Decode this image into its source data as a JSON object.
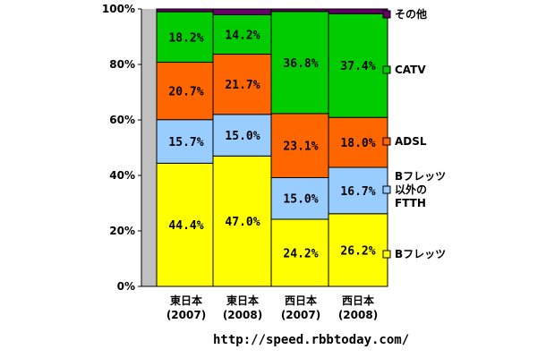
{
  "chart_data": {
    "type": "bar",
    "stacked": true,
    "categories": [
      [
        "東日本",
        "(2007)"
      ],
      [
        "東日本",
        "(2008)"
      ],
      [
        "西日本",
        "(2007)"
      ],
      [
        "西日本",
        "(2008)"
      ]
    ],
    "ylim": [
      0,
      100
    ],
    "yticks": [
      "0%",
      "20%",
      "40%",
      "60%",
      "80%",
      "100%"
    ],
    "grid": false,
    "legend_position": "right",
    "series": [
      {
        "name": "Bフレッツ",
        "legend_lines": [
          "Bフレッツ"
        ],
        "color": "#ffff00",
        "values": [
          44.4,
          47.0,
          24.2,
          26.2
        ],
        "labels": [
          "44.4%",
          "47.0%",
          "24.2%",
          "26.2%"
        ]
      },
      {
        "name": "Bフレッツ以外のFTTH",
        "legend_lines": [
          "Bフレッツ",
          "以外の",
          "FTTH"
        ],
        "color": "#99ccff",
        "values": [
          15.7,
          15.0,
          15.0,
          16.7
        ],
        "labels": [
          "15.7%",
          "15.0%",
          "15.0%",
          "16.7%"
        ]
      },
      {
        "name": "ADSL",
        "legend_lines": [
          "ADSL"
        ],
        "color": "#ff6600",
        "values": [
          20.7,
          21.7,
          23.1,
          18.0
        ],
        "labels": [
          "20.7%",
          "21.7%",
          "23.1%",
          "18.0%"
        ]
      },
      {
        "name": "CATV",
        "legend_lines": [
          "CATV"
        ],
        "color": "#00cc00",
        "values": [
          18.2,
          14.2,
          36.8,
          37.4
        ],
        "labels": [
          "18.2%",
          "14.2%",
          "36.8%",
          "37.4%"
        ]
      },
      {
        "name": "その他",
        "legend_lines": [
          "その他"
        ],
        "color": "#660066",
        "values": [
          1.0,
          2.1,
          0.9,
          1.7
        ],
        "labels": [
          "",
          "",
          "",
          ""
        ]
      }
    ]
  },
  "source_url": "http://speed.rbbtoday.com/"
}
